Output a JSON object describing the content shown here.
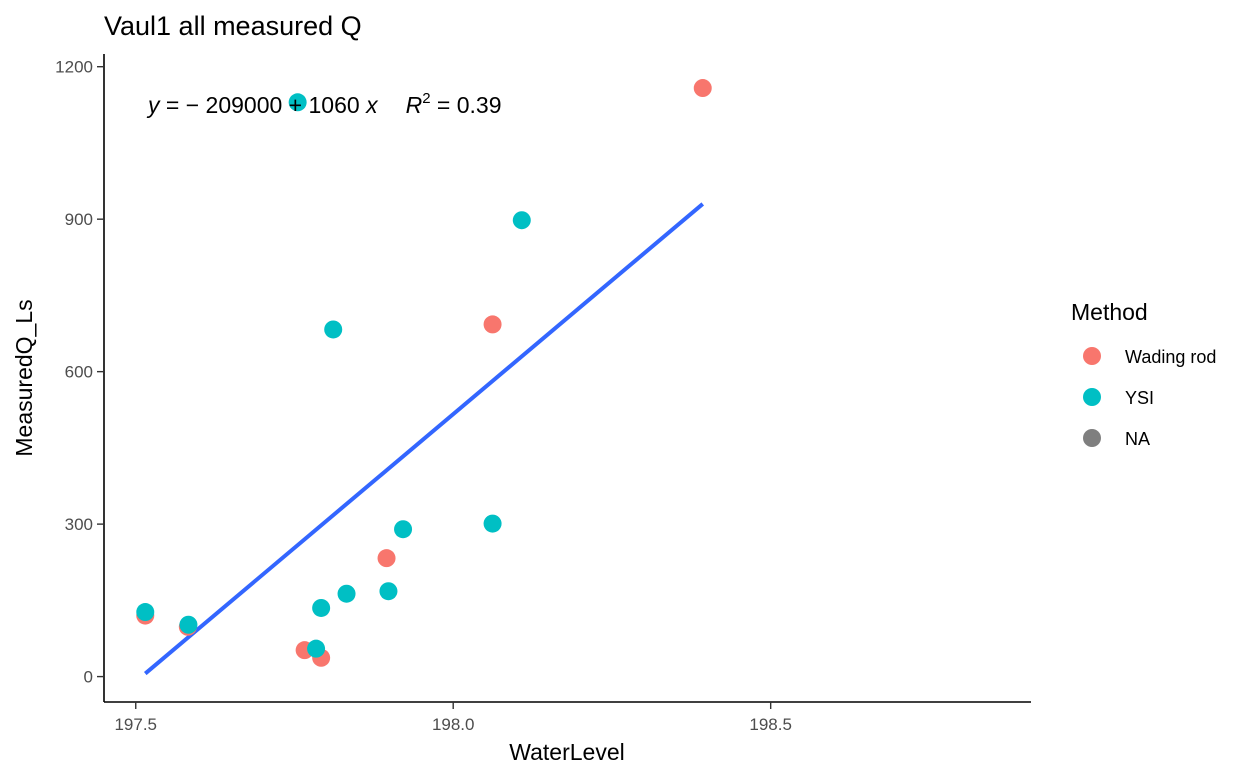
{
  "chart_data": {
    "type": "scatter",
    "title": "Vaul1 all measured Q",
    "xlabel": "WaterLevel",
    "ylabel": "MeasuredQ_Ls",
    "xlim": [
      197.45,
      198.91
    ],
    "ylim": [
      -50,
      1225
    ],
    "x_ticks": [
      197.5,
      198.0,
      198.5
    ],
    "x_tick_labels": [
      "197.5",
      "198.0",
      "198.5"
    ],
    "y_ticks": [
      0,
      300,
      600,
      900,
      1200
    ],
    "y_tick_labels": [
      "0",
      "300",
      "600",
      "900",
      "1200"
    ],
    "grid": false,
    "legend": {
      "title": "Method",
      "placement": "right",
      "entries": [
        {
          "label": "Wading rod",
          "color": "#F8766D"
        },
        {
          "label": "YSI",
          "color": "#00BFC4"
        },
        {
          "label": "NA",
          "color": "#7F7F7F"
        }
      ]
    },
    "series": [
      {
        "name": "Wading rod",
        "color": "#F8766D",
        "points": [
          {
            "x": 197.515,
            "y": 120
          },
          {
            "x": 197.582,
            "y": 98
          },
          {
            "x": 197.766,
            "y": 52
          },
          {
            "x": 197.792,
            "y": 37
          },
          {
            "x": 197.895,
            "y": 233
          },
          {
            "x": 198.062,
            "y": 693
          },
          {
            "x": 198.393,
            "y": 1158
          }
        ]
      },
      {
        "name": "YSI",
        "color": "#00BFC4",
        "points": [
          {
            "x": 197.515,
            "y": 127
          },
          {
            "x": 197.583,
            "y": 102
          },
          {
            "x": 197.755,
            "y": 1130
          },
          {
            "x": 197.784,
            "y": 55
          },
          {
            "x": 197.792,
            "y": 135
          },
          {
            "x": 197.811,
            "y": 683
          },
          {
            "x": 197.832,
            "y": 163
          },
          {
            "x": 197.898,
            "y": 168
          },
          {
            "x": 197.921,
            "y": 290
          },
          {
            "x": 198.062,
            "y": 301
          },
          {
            "x": 198.108,
            "y": 898
          }
        ]
      }
    ],
    "fit_line": {
      "color": "#3366FF",
      "from": {
        "x": 197.515,
        "y": 6
      },
      "to": {
        "x": 198.393,
        "y": 930
      }
    },
    "annotation": {
      "y": "y",
      "eq_middle": " = − 209000 + 1060 ",
      "x": "x",
      "r": "R",
      "sup": "2",
      "r2_value": " = 0.39"
    }
  }
}
